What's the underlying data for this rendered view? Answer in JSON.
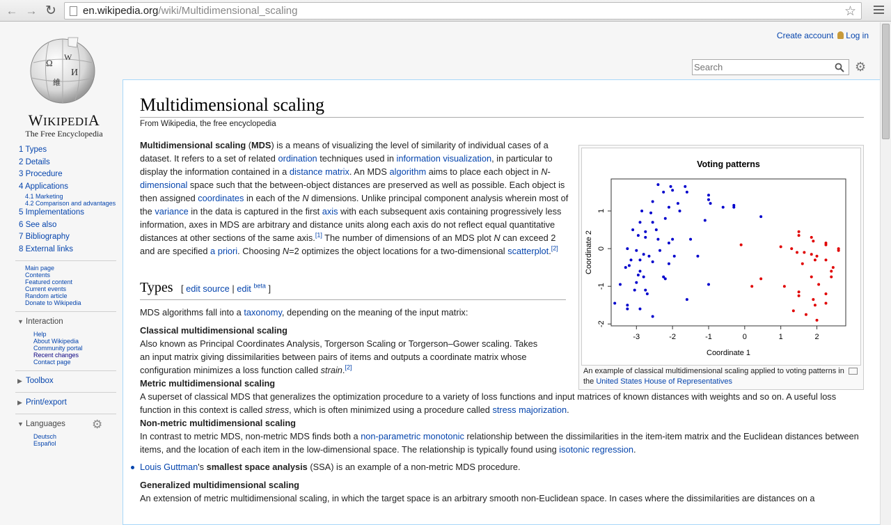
{
  "browser": {
    "url_domain": "en.wikipedia.org",
    "url_path": "/wiki/Multidimensional_scaling"
  },
  "header": {
    "create_account": "Create account",
    "login": "Log in",
    "search_placeholder": "Search"
  },
  "logo": {
    "wordmark": "Wikipedia",
    "wordmark_display": "WIKIPEDIA",
    "tagline": "The Free Encyclopedia"
  },
  "toc": [
    {
      "label": "1 Types"
    },
    {
      "label": "2 Details"
    },
    {
      "label": "3 Procedure"
    },
    {
      "label": "4 Applications"
    },
    {
      "label": "4.1 Marketing",
      "sub": true
    },
    {
      "label": "4.2 Comparison and advantages",
      "sub": true
    },
    {
      "label": "5 Implementations"
    },
    {
      "label": "6 See also"
    },
    {
      "label": "7 Bibliography"
    },
    {
      "label": "8 External links"
    }
  ],
  "nav": [
    "Main page",
    "Contents",
    "Featured content",
    "Current events",
    "Random article",
    "Donate to Wikipedia"
  ],
  "interaction": {
    "heading": "Interaction",
    "items": [
      "Help",
      "About Wikipedia",
      "Community portal",
      "Recent changes",
      "Contact page"
    ]
  },
  "toolbox": "Toolbox",
  "printexport": "Print/export",
  "languages": {
    "heading": "Languages",
    "items": [
      "Deutsch",
      "Español"
    ]
  },
  "article": {
    "title": "Multidimensional scaling",
    "tagline": "From Wikipedia, the free encyclopedia",
    "h2": "Types",
    "edit_source": "edit source",
    "edit": "edit",
    "beta": "beta"
  },
  "figure": {
    "caption_pre": "An example of classical multidimensional scaling applied to voting patterns in the ",
    "caption_link": "United States House of Representatives"
  },
  "chart_data": {
    "type": "scatter",
    "title": "Voting patterns",
    "xlabel": "Coordinate 1",
    "ylabel": "Coordinate 2",
    "xlim": [
      -3.7,
      2.8
    ],
    "ylim": [
      -2.05,
      1.85
    ],
    "xticks": [
      -3,
      -2,
      -1,
      0,
      1,
      2
    ],
    "yticks": [
      -2,
      -1,
      0,
      1
    ],
    "series": [
      {
        "color": "#0000cc",
        "points": [
          [
            -2.4,
            1.7
          ],
          [
            -2.05,
            1.65
          ],
          [
            -2.0,
            1.55
          ],
          [
            -1.65,
            1.65
          ],
          [
            -1.6,
            1.5
          ],
          [
            -2.25,
            1.5
          ],
          [
            -1.0,
            1.42
          ],
          [
            -1.0,
            1.3
          ],
          [
            -0.95,
            1.2
          ],
          [
            -0.6,
            1.1
          ],
          [
            -0.3,
            1.15
          ],
          [
            -0.3,
            1.1
          ],
          [
            -1.85,
            1.2
          ],
          [
            -2.55,
            1.25
          ],
          [
            -2.1,
            1.1
          ],
          [
            -1.8,
            1.0
          ],
          [
            -2.85,
            1.0
          ],
          [
            -2.6,
            0.95
          ],
          [
            -2.2,
            0.8
          ],
          [
            -2.55,
            0.7
          ],
          [
            -1.1,
            0.75
          ],
          [
            0.45,
            0.85
          ],
          [
            -2.9,
            0.7
          ],
          [
            -3.1,
            0.5
          ],
          [
            -2.75,
            0.45
          ],
          [
            -2.45,
            0.5
          ],
          [
            -2.95,
            0.35
          ],
          [
            -2.75,
            0.3
          ],
          [
            -2.4,
            0.25
          ],
          [
            -2.1,
            0.15
          ],
          [
            -2.0,
            0.25
          ],
          [
            -1.5,
            0.25
          ],
          [
            -3.25,
            0.0
          ],
          [
            -3.0,
            -0.05
          ],
          [
            -2.8,
            -0.15
          ],
          [
            -2.65,
            -0.2
          ],
          [
            -2.35,
            -0.05
          ],
          [
            -3.15,
            -0.3
          ],
          [
            -2.9,
            -0.3
          ],
          [
            -2.55,
            -0.35
          ],
          [
            -1.95,
            -0.2
          ],
          [
            -2.1,
            -0.4
          ],
          [
            -1.3,
            -0.2
          ],
          [
            -3.3,
            -0.5
          ],
          [
            -3.2,
            -0.45
          ],
          [
            -2.9,
            -0.6
          ],
          [
            -2.95,
            -0.7
          ],
          [
            -2.8,
            -0.75
          ],
          [
            -2.25,
            -0.75
          ],
          [
            -2.2,
            -0.8
          ],
          [
            -3.0,
            -0.9
          ],
          [
            -3.45,
            -0.95
          ],
          [
            -3.05,
            -1.1
          ],
          [
            -2.75,
            -1.1
          ],
          [
            -2.7,
            -1.2
          ],
          [
            -1.0,
            -0.95
          ],
          [
            -1.6,
            -1.35
          ],
          [
            -3.6,
            -1.45
          ],
          [
            -3.25,
            -1.5
          ],
          [
            -3.25,
            -1.6
          ],
          [
            -2.9,
            -1.6
          ],
          [
            -2.55,
            -1.8
          ]
        ]
      },
      {
        "color": "#e00000",
        "points": [
          [
            -0.1,
            0.1
          ],
          [
            0.45,
            -0.8
          ],
          [
            0.2,
            -1.0
          ],
          [
            1.0,
            0.05
          ],
          [
            1.5,
            0.45
          ],
          [
            1.5,
            0.35
          ],
          [
            1.85,
            0.3
          ],
          [
            1.9,
            0.2
          ],
          [
            2.25,
            0.15
          ],
          [
            2.25,
            0.1
          ],
          [
            2.6,
            0.0
          ],
          [
            2.6,
            -0.05
          ],
          [
            1.3,
            0.0
          ],
          [
            1.45,
            -0.1
          ],
          [
            1.65,
            -0.1
          ],
          [
            1.85,
            -0.15
          ],
          [
            2.0,
            -0.2
          ],
          [
            1.95,
            -0.3
          ],
          [
            2.25,
            -0.3
          ],
          [
            1.6,
            -0.4
          ],
          [
            2.45,
            -0.5
          ],
          [
            2.4,
            -0.6
          ],
          [
            1.85,
            -0.75
          ],
          [
            2.4,
            -0.75
          ],
          [
            2.05,
            -0.95
          ],
          [
            1.1,
            -1.0
          ],
          [
            1.5,
            -1.15
          ],
          [
            1.5,
            -1.25
          ],
          [
            2.25,
            -1.2
          ],
          [
            1.9,
            -1.35
          ],
          [
            1.95,
            -1.5
          ],
          [
            2.25,
            -1.45
          ],
          [
            1.35,
            -1.65
          ],
          [
            1.7,
            -1.75
          ],
          [
            2.0,
            -1.9
          ]
        ]
      }
    ]
  }
}
